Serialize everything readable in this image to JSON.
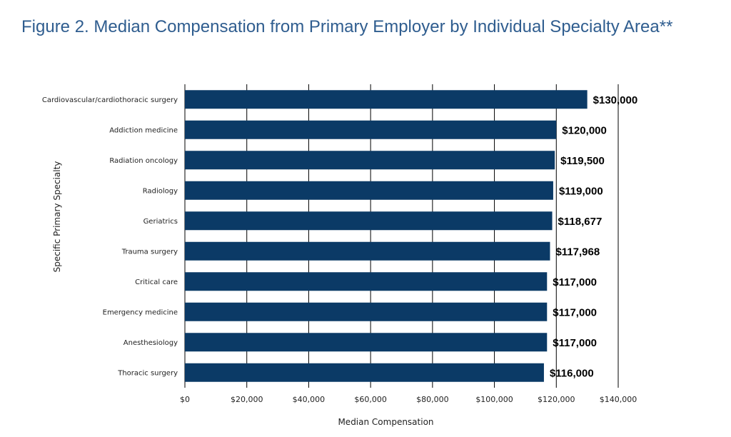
{
  "title": "Figure 2. Median Compensation from Primary Employer by Individual Specialty Area**",
  "chart_data": {
    "type": "bar",
    "orientation": "horizontal",
    "categories": [
      "Cardiovascular/cardiothoracic surgery",
      "Addiction medicine",
      "Radiation oncology",
      "Radiology",
      "Geriatrics",
      "Trauma surgery",
      "Critical care",
      "Emergency medicine",
      "Anesthesiology",
      "Thoracic surgery"
    ],
    "values": [
      130000,
      120000,
      119500,
      119000,
      118677,
      117968,
      117000,
      117000,
      117000,
      116000
    ],
    "data_labels": [
      "$130,000",
      "$120,000",
      "$119,500",
      "$119,000",
      "$118,677",
      "$117,968",
      "$117,000",
      "$117,000",
      "$117,000",
      "$116,000"
    ],
    "xlabel": "Median Compensation",
    "ylabel": "Specific Primary Specialty",
    "xlim": [
      0,
      140000
    ],
    "xticks": [
      0,
      20000,
      40000,
      60000,
      80000,
      100000,
      120000,
      140000
    ],
    "xtick_labels": [
      "$0",
      "$20,000",
      "$40,000",
      "$60,000",
      "$80,000",
      "$100,000",
      "$120,000",
      "$140,000"
    ],
    "grid": true,
    "legend": "none",
    "bar_color": "#0b3a66"
  }
}
